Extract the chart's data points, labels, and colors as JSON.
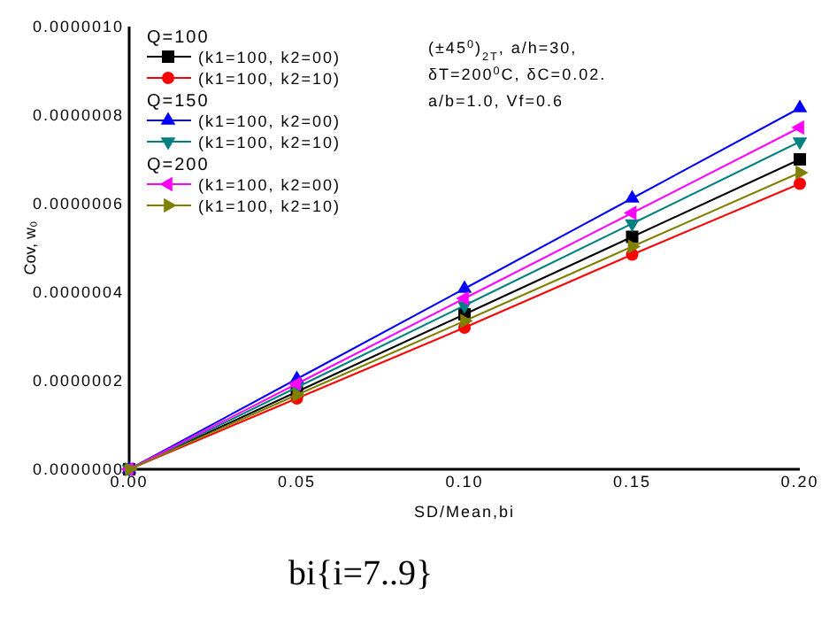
{
  "chart_data": {
    "type": "line",
    "xlabel": "SD/Mean,bi",
    "ylabel": "Cov, w₀",
    "x": [
      0,
      0.05,
      0.1,
      0.15,
      0.2
    ],
    "xlim": [
      0,
      0.2
    ],
    "xticks": [
      {
        "value": 0,
        "label": "0.00"
      },
      {
        "value": 0.05,
        "label": "0.05"
      },
      {
        "value": 0.1,
        "label": "0.10"
      },
      {
        "value": 0.15,
        "label": "0.15"
      },
      {
        "value": 0.2,
        "label": "0.20"
      }
    ],
    "ylim": [
      0,
      1e-06
    ],
    "yticks": [
      {
        "value": 0,
        "label": "0.0000000"
      },
      {
        "value": 2e-07,
        "label": "0.0000002"
      },
      {
        "value": 4e-07,
        "label": "0.0000004"
      },
      {
        "value": 6e-07,
        "label": "0.0000006"
      },
      {
        "value": 8e-07,
        "label": "0.0000008"
      },
      {
        "value": 1e-06,
        "label": "0.0000010"
      }
    ],
    "grid": false,
    "legend": "top left",
    "series": [
      {
        "name": "(k1=100, k2=00)",
        "color": "#000000",
        "marker": "square",
        "values": [
          0,
          1.75e-07,
          3.5e-07,
          5.25e-07,
          7e-07
        ]
      },
      {
        "name": "(k1=100, k2=10)",
        "color": "#ff0000",
        "marker": "circle",
        "values": [
          0,
          1.6e-07,
          3.2e-07,
          4.85e-07,
          6.45e-07
        ]
      },
      {
        "name": "(k1=100, k2=00)",
        "color": "#0000ff",
        "marker": "triangle",
        "values": [
          0,
          2.04e-07,
          4.08e-07,
          6.12e-07,
          8.16e-07
        ]
      },
      {
        "name": "(k1=100, k2=10)",
        "color": "#008080",
        "marker": "triangle-down",
        "values": [
          0,
          1.85e-07,
          3.7e-07,
          5.55e-07,
          7.4e-07
        ]
      },
      {
        "name": "(k1=100, k2=00)",
        "color": "#ff00ff",
        "marker": "triangle-left",
        "values": [
          0,
          1.93e-07,
          3.86e-07,
          5.79e-07,
          7.72e-07
        ]
      },
      {
        "name": "(k1=100, k2=10)",
        "color": "#808000",
        "marker": "triangle-right",
        "values": [
          0,
          1.68e-07,
          3.35e-07,
          5.03e-07,
          6.7e-07
        ]
      }
    ],
    "annotations": [
      "Q=100",
      "Q=150",
      "Q=200",
      "(±45$^{0}$)$_{2T}$, a/h=30,",
      "δT=200$^{0}$C, δC=0.02.",
      "a/b=1.0,  Vf=0.6",
      "bi{i=7..9}"
    ]
  }
}
